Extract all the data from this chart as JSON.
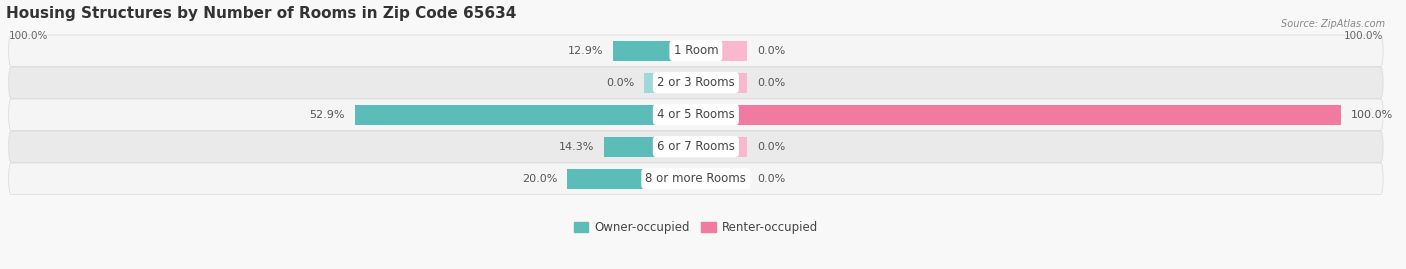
{
  "title": "Housing Structures by Number of Rooms in Zip Code 65634",
  "source": "Source: ZipAtlas.com",
  "categories": [
    "1 Room",
    "2 or 3 Rooms",
    "4 or 5 Rooms",
    "6 or 7 Rooms",
    "8 or more Rooms"
  ],
  "owner_values": [
    12.9,
    0.0,
    52.9,
    14.3,
    20.0
  ],
  "renter_values": [
    0.0,
    0.0,
    100.0,
    0.0,
    0.0
  ],
  "owner_color": "#5bbcb8",
  "renter_color": "#f07aa0",
  "renter_stub_color": "#f9b8ce",
  "owner_stub_color": "#9dd9d8",
  "row_bg_color_odd": "#f5f5f5",
  "row_bg_color_even": "#eaeaea",
  "row_border_color": "#d8d8d8",
  "max_value": 100.0,
  "stub_value": 8.0,
  "axis_left_label": "100.0%",
  "axis_right_label": "100.0%",
  "title_fontsize": 11,
  "label_fontsize": 8.5,
  "value_fontsize": 8,
  "tick_fontsize": 7.5,
  "background_color": "#f8f8f8"
}
